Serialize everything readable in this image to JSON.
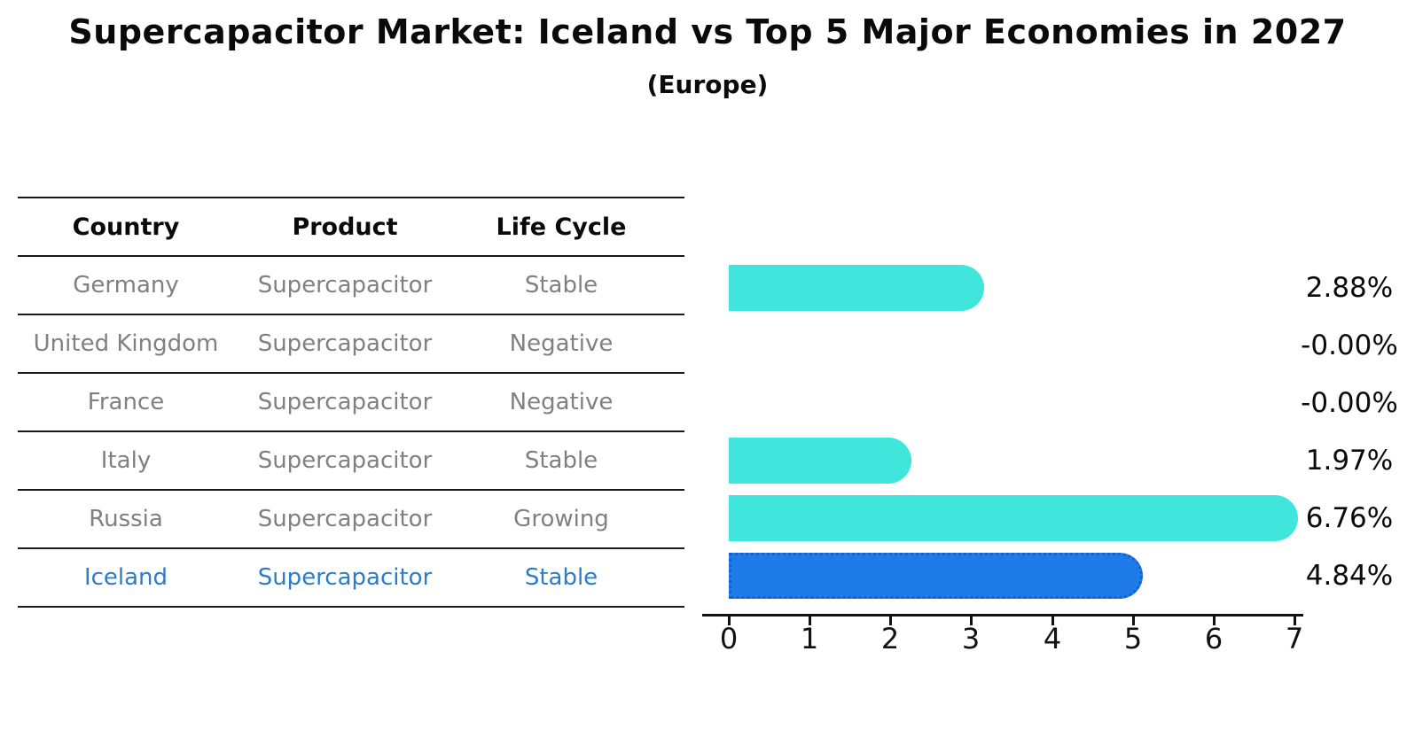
{
  "title": "Supercapacitor Market: Iceland vs Top 5 Major Economies in 2027",
  "subtitle": "(Europe)",
  "table": {
    "headers": [
      "Country",
      "Product",
      "Life Cycle"
    ],
    "rows": [
      {
        "country": "Germany",
        "product": "Supercapacitor",
        "life_cycle": "Stable",
        "highlighted": false
      },
      {
        "country": "United Kingdom",
        "product": "Supercapacitor",
        "life_cycle": "Negative",
        "highlighted": false
      },
      {
        "country": "France",
        "product": "Supercapacitor",
        "life_cycle": "Negative",
        "highlighted": false
      },
      {
        "country": "Italy",
        "product": "Supercapacitor",
        "life_cycle": "Stable",
        "highlighted": false
      },
      {
        "country": "Russia",
        "product": "Supercapacitor",
        "life_cycle": "Growing",
        "highlighted": false
      },
      {
        "country": "Iceland",
        "product": "Supercapacitor",
        "life_cycle": "Stable",
        "highlighted": true
      }
    ]
  },
  "chart_data": {
    "type": "bar",
    "orientation": "horizontal",
    "title": "Supercapacitor Market: Iceland vs Top 5 Major Economies in 2027 (Europe)",
    "categories": [
      "Germany",
      "United Kingdom",
      "France",
      "Italy",
      "Russia",
      "Iceland"
    ],
    "values": [
      2.88,
      -0.0,
      -0.0,
      1.97,
      6.76,
      4.84
    ],
    "value_labels": [
      "2.88%",
      "-0.00%",
      "-0.00%",
      "1.97%",
      "6.76%",
      "4.84%"
    ],
    "xlabel": "",
    "ylabel": "",
    "xlim": [
      0,
      7
    ],
    "x_ticks": [
      0,
      1,
      2,
      3,
      4,
      5,
      6,
      7
    ],
    "x_tick_labels": [
      "0",
      "1",
      "2",
      "3",
      "4",
      "5",
      "6",
      "7"
    ],
    "grid": false,
    "legend": false,
    "bar_color": "#40e5dc",
    "highlight_bar_color": "#1e7be8",
    "highlight_index": 5,
    "highlight_text_color": "#2c7cc8"
  }
}
